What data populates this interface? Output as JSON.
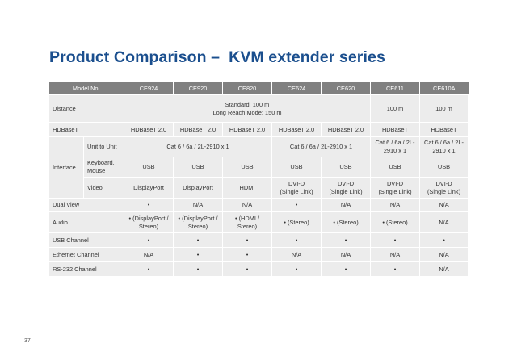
{
  "title": "Product Comparison –  KVM extender series",
  "page_number": "37",
  "header": {
    "model_label": "Model No.",
    "models": [
      "CE924",
      "CE920",
      "CE820",
      "CE624",
      "CE620",
      "CE611",
      "CE610A"
    ]
  },
  "rows": {
    "distance": {
      "label": "Distance",
      "standard": "Standard: 100 m",
      "long_reach": "Long Reach Mode: 150 m",
      "ce611": "100 m",
      "ce610a": "100 m"
    },
    "hdbaset": {
      "label": "HDBaseT",
      "values": [
        "HDBaseT 2.0",
        "HDBaseT 2.0",
        "HDBaseT 2.0",
        "HDBaseT 2.0",
        "HDBaseT 2.0",
        "HDBaseT",
        "HDBaseT"
      ]
    },
    "interface": {
      "label": "Interface",
      "unit_to_unit": {
        "label": "Unit to Unit",
        "group1": "Cat 6 / 6a / 2L-2910 x 1",
        "group2": "Cat 6 / 6a / 2L-2910 x 1",
        "ce611_line1": "Cat 6 / 6a / 2L-",
        "ce611_line2": "2910 x 1",
        "ce610a_line1": "Cat 6 / 6a / 2L-",
        "ce610a_line2": "2910 x 1"
      },
      "keyboard_mouse": {
        "label_line1": "Keyboard,",
        "label_line2": "Mouse",
        "values": [
          "USB",
          "USB",
          "USB",
          "USB",
          "USB",
          "USB",
          "USB"
        ]
      },
      "video": {
        "label": "Video",
        "ce924": "DisplayPort",
        "ce920": "DisplayPort",
        "ce820": "HDMI",
        "dvi_line1": "DVI-D",
        "dvi_line2": "(Single Link)"
      }
    },
    "dual_view": {
      "label": "Dual View",
      "values": [
        "•",
        "N/A",
        "N/A",
        "•",
        "N/A",
        "N/A",
        "N/A"
      ]
    },
    "audio": {
      "label": "Audio",
      "ce924_line1": "• (DisplayPort /",
      "ce924_line2": "Stereo)",
      "ce920_line1": "• (DisplayPort /",
      "ce920_line2": "Stereo)",
      "ce820_line1": "• (HDMI /",
      "ce820_line2": "Stereo)",
      "ce624": "• (Stereo)",
      "ce620": "• (Stereo)",
      "ce611": "• (Stereo)",
      "ce610a": "N/A"
    },
    "usb_channel": {
      "label": "USB Channel",
      "values": [
        "•",
        "•",
        "•",
        "•",
        "•",
        "•",
        "•"
      ]
    },
    "ethernet_channel": {
      "label": "Ethernet Channel",
      "values": [
        "N/A",
        "•",
        "•",
        "N/A",
        "N/A",
        "N/A",
        "N/A"
      ]
    },
    "rs232_channel": {
      "label": "RS-232 Channel",
      "values": [
        "•",
        "•",
        "•",
        "•",
        "•",
        "•",
        "N/A"
      ]
    }
  }
}
